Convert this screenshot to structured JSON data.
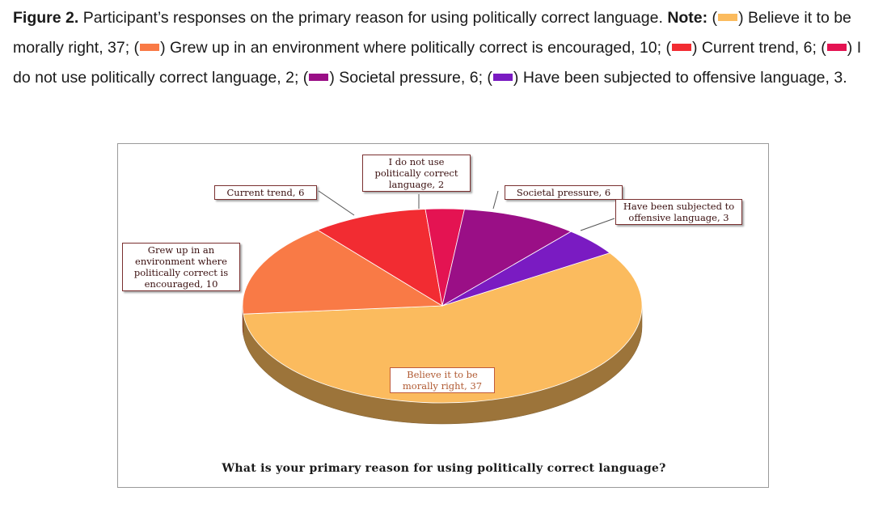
{
  "caption": {
    "figure_label": "Figure 2.",
    "intro": "Participant’s responses on the primary reason for using politically correct language.",
    "note_label": "Note:",
    "legend": [
      {
        "text": "Believe it to be morally right, 37;",
        "color": "#fbbb5e"
      },
      {
        "text": "Grew up in an environment where politically correct is encouraged, 10;",
        "color": "#f97a46"
      },
      {
        "text": "Current trend, 6;",
        "color": "#f22c32"
      },
      {
        "text": "I do not use politically correct language, 2;",
        "color": "#e41352"
      },
      {
        "text": "Societal pressure, 6;",
        "color": "#9a0f86"
      },
      {
        "text": "Have been subjected to offensive language, 3.",
        "color": "#7a1bc2"
      }
    ]
  },
  "chart_data": {
    "type": "pie",
    "title": "What is your primary reason for using politically correct language?",
    "slices": [
      {
        "label": "Believe it to be morally right",
        "value": 37,
        "color": "#fbbb5e",
        "data_label": "Believe it to be morally right, 37"
      },
      {
        "label": "Grew up in an environment where politically correct is encouraged",
        "value": 10,
        "color": "#f97a46",
        "data_label": "Grew up in an environment where politically correct is encouraged, 10"
      },
      {
        "label": "Current trend",
        "value": 6,
        "color": "#f22c32",
        "data_label": "Current trend, 6"
      },
      {
        "label": "I do not use politically correct language",
        "value": 2,
        "color": "#e41352",
        "data_label": "I do not use politically correct language, 2"
      },
      {
        "label": "Societal pressure",
        "value": 6,
        "color": "#9a0f86",
        "data_label": "Societal pressure, 6"
      },
      {
        "label": "Have been subjected to offensive language",
        "value": 3,
        "color": "#7a1bc2",
        "data_label": "Have been subjected to offensive language, 3"
      }
    ],
    "style": "3d-tilted"
  }
}
